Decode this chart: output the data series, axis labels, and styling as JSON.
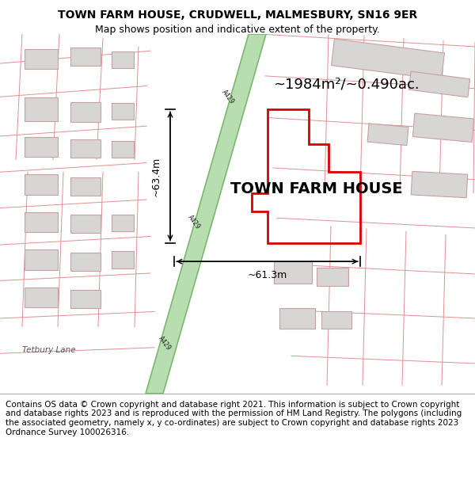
{
  "title": "TOWN FARM HOUSE, CRUDWELL, MALMESBURY, SN16 9ER",
  "subtitle": "Map shows position and indicative extent of the property.",
  "footer": "Contains OS data © Crown copyright and database right 2021. This information is subject to Crown copyright and database rights 2023 and is reproduced with the permission of HM Land Registry. The polygons (including the associated geometry, namely x, y co-ordinates) are subject to Crown copyright and database rights 2023 Ordnance Survey 100026316.",
  "property_label": "TOWN FARM HOUSE",
  "area_label": "~1984m²/~0.490ac.",
  "width_label": "~61.3m",
  "height_label": "~63.4m",
  "road_label": "A429",
  "map_background": "#ffffff",
  "road_fill": "#b8ddb0",
  "road_edge": "#7ab870",
  "building_fill": "#d8d5d5",
  "building_edge": "#c8a0a0",
  "plot_outline_color": "#dd0000",
  "street_outline_color": "#e09090",
  "dim_line_color": "#000000",
  "title_fontsize": 10,
  "subtitle_fontsize": 9,
  "footer_fontsize": 7.5,
  "label_fontsize": 9,
  "property_label_fontsize": 14,
  "area_label_fontsize": 13
}
